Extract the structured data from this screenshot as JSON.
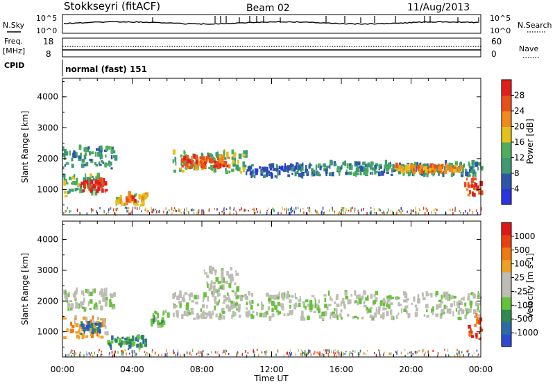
{
  "header": {
    "station": "Stokkseyri (fitACF)",
    "beam": "Beam 02",
    "date": "11/Aug/2013"
  },
  "status_panels": {
    "nsky_label": "N.Sky",
    "nsearch_label": "N.Search",
    "noise_ticks": [
      "10^5",
      "10^0"
    ],
    "freq_label": "Freq.",
    "freq_unit": "[MHz]",
    "freq_ticks": [
      "18",
      "8"
    ],
    "nave_ticks": [
      "60",
      "0"
    ],
    "nave_label": "Nave",
    "cpid_label": "CPID",
    "cpid_value": "normal (fast) 151"
  },
  "colors": {
    "power_scale": [
      "#2a34e0",
      "#2d56a8",
      "#3e9a72",
      "#4fae5a",
      "#e4c21a",
      "#f08a1c",
      "#e84f1a",
      "#e01e1e"
    ],
    "velocity_scale": [
      "#2d4bd0",
      "#2e6aa8",
      "#2e8a4e",
      "#66c23a",
      "#bdbdb5",
      "#bdbdb5",
      "#f0a020",
      "#f07a10",
      "#e84010",
      "#e01818"
    ]
  },
  "chart_data": [
    {
      "type": "heatmap",
      "panel": "power",
      "ylabel": "Slant Range [km]",
      "ylim": [
        180,
        4600
      ],
      "yticks": [
        "1000",
        "2000",
        "3000",
        "4000"
      ],
      "xlim": [
        0,
        24
      ],
      "colorbar_label": "Power [dB]",
      "colorbar_ticks": [
        "4",
        "8",
        "12",
        "16",
        "20",
        "24",
        "28"
      ],
      "echo_regions": [
        {
          "t0": 0.0,
          "t1": 3.0,
          "r0": 1650,
          "r1": 2300,
          "level": 2
        },
        {
          "t0": 0.0,
          "t1": 2.2,
          "r0": 750,
          "r1": 1400,
          "level": 3
        },
        {
          "t0": 1.0,
          "t1": 2.5,
          "r0": 880,
          "r1": 1250,
          "level": 7
        },
        {
          "t0": 3.0,
          "t1": 4.8,
          "r0": 450,
          "r1": 800,
          "level": 4
        },
        {
          "t0": 3.6,
          "t1": 4.2,
          "r0": 550,
          "r1": 700,
          "level": 6
        },
        {
          "t0": 6.3,
          "t1": 10.5,
          "r0": 1500,
          "r1": 2150,
          "level": 3
        },
        {
          "t0": 6.8,
          "t1": 9.6,
          "r0": 1650,
          "r1": 2000,
          "level": 6
        },
        {
          "t0": 10.5,
          "t1": 14.0,
          "r0": 1350,
          "r1": 1750,
          "level": 1
        },
        {
          "t0": 14.0,
          "t1": 24.0,
          "r0": 1400,
          "r1": 1800,
          "level": 2
        },
        {
          "t0": 19.0,
          "t1": 22.8,
          "r0": 1500,
          "r1": 1700,
          "level": 5
        },
        {
          "t0": 23.0,
          "t1": 24.0,
          "r0": 750,
          "r1": 1300,
          "level": 6
        }
      ]
    },
    {
      "type": "heatmap",
      "panel": "velocity",
      "ylabel": "Slant Range [km]",
      "ylim": [
        180,
        4600
      ],
      "yticks": [
        "1000",
        "2000",
        "3000",
        "4000"
      ],
      "xlim": [
        0,
        24
      ],
      "xlabel": "Time UT",
      "xticks": [
        "00:00",
        "04:00",
        "08:00",
        "12:00",
        "16:00",
        "20:00",
        "00:00"
      ],
      "colorbar_label": "Velocity [m s-1]",
      "colorbar_ticks": [
        "1000",
        "500",
        "100",
        "25",
        "-25",
        "-100",
        "-500",
        "-1000"
      ],
      "echo_regions": [
        {
          "t0": 0.0,
          "t1": 3.0,
          "r0": 1650,
          "r1": 2300,
          "level": 4
        },
        {
          "t0": 0.0,
          "t1": 2.5,
          "r0": 750,
          "r1": 1400,
          "level": 6
        },
        {
          "t0": 1.0,
          "t1": 2.2,
          "r0": 900,
          "r1": 1300,
          "level": 1
        },
        {
          "t0": 2.5,
          "t1": 4.8,
          "r0": 400,
          "r1": 800,
          "level": 2
        },
        {
          "t0": 5.0,
          "t1": 6.0,
          "r0": 1100,
          "r1": 1600,
          "level": 3
        },
        {
          "t0": 6.3,
          "t1": 24.0,
          "r0": 1350,
          "r1": 2200,
          "level": 4
        },
        {
          "t0": 8.0,
          "t1": 10.0,
          "r0": 2200,
          "r1": 3000,
          "level": 4
        },
        {
          "t0": 23.2,
          "t1": 24.0,
          "r0": 700,
          "r1": 1500,
          "level": 8
        }
      ]
    }
  ]
}
